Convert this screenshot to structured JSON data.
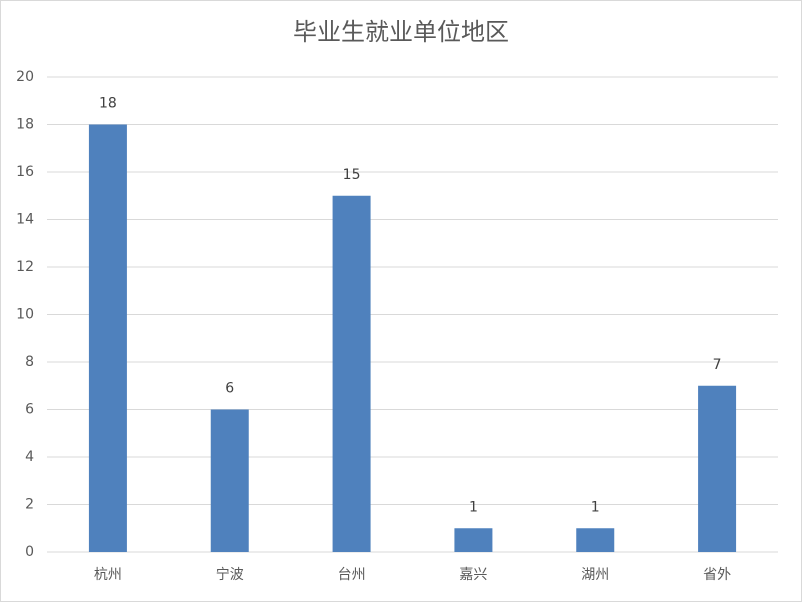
{
  "chart_data": {
    "type": "bar",
    "title": "毕业生就业单位地区",
    "categories": [
      "杭州",
      "宁波",
      "台州",
      "嘉兴",
      "湖州",
      "省外"
    ],
    "values": [
      18,
      6,
      15,
      1,
      1,
      7
    ],
    "color": "#4f81bd",
    "ylim": [
      0,
      20
    ],
    "yticks": [
      0,
      2,
      4,
      6,
      8,
      10,
      12,
      14,
      16,
      18,
      20
    ],
    "grid": true
  }
}
